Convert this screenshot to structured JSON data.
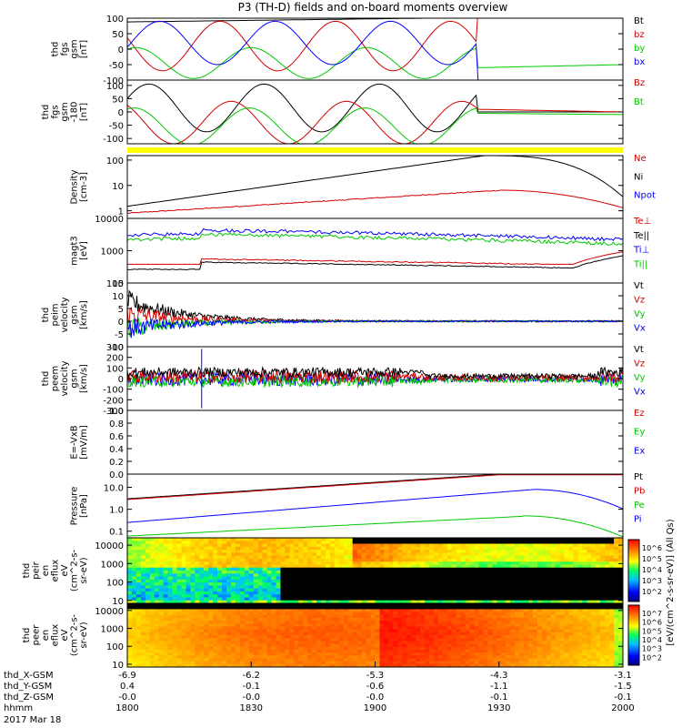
{
  "title": "P3 (TH-D) fields and on-board moments overview",
  "colors": {
    "black": "#000000",
    "red": "#d00000",
    "green": "#00c800",
    "blue": "#0000ff",
    "yellow": "#ffff00"
  },
  "chart_data": [
    {
      "type": "line",
      "panel": "fgs",
      "ylabel": [
        "thd",
        "fgs",
        "gsm",
        "[nT]"
      ],
      "ylim": [
        -100,
        100
      ],
      "yticks": [
        "100",
        "50",
        "0",
        "-50",
        "-100"
      ],
      "legend": [
        {
          "name": "Bt",
          "color": "black"
        },
        {
          "name": "bz",
          "color": "red"
        },
        {
          "name": "by",
          "color": "green"
        },
        {
          "name": "bx",
          "color": "blue"
        }
      ]
    },
    {
      "type": "line",
      "panel": "fgs_r180",
      "ylabel": [
        "thd",
        "fgs",
        "gsm",
        "-180",
        "[nT]"
      ],
      "ylim": [
        -120,
        120
      ],
      "yticks": [
        "100",
        "50",
        "0",
        "-50",
        "-100"
      ],
      "legend": [
        {
          "name": "Bz",
          "color": "red"
        },
        {
          "name": "Bt",
          "color": "green"
        }
      ]
    },
    {
      "type": "line",
      "panel": "density",
      "ylabel": [
        "Density",
        "[cm-3]"
      ],
      "yscale": "log",
      "ylim": [
        0.5,
        150
      ],
      "yticks": [
        "100",
        "10",
        "1"
      ],
      "legend": [
        {
          "name": "Ne",
          "color": "red"
        },
        {
          "name": "Ni",
          "color": "black"
        },
        {
          "name": "Npot",
          "color": "blue"
        }
      ]
    },
    {
      "type": "line",
      "panel": "temperature",
      "ylabel": [
        "magt3",
        "[eV]"
      ],
      "yscale": "log",
      "ylim": [
        100,
        10000
      ],
      "yticks": [
        "10000",
        "1000",
        "100"
      ],
      "legend": [
        {
          "name": "Te⊥",
          "color": "red"
        },
        {
          "name": "Te||",
          "color": "black"
        },
        {
          "name": "Ti⊥",
          "color": "blue"
        },
        {
          "name": "Ti||",
          "color": "green"
        }
      ]
    },
    {
      "type": "line",
      "panel": "ion_velocity",
      "ylabel": [
        "thd",
        "peim",
        "velocity",
        "gsm",
        "[km/s]"
      ],
      "ylim": [
        -10,
        15
      ],
      "yticks": [
        "15",
        "10",
        "5",
        "0",
        "-5",
        "-10"
      ],
      "legend": [
        {
          "name": "Vt",
          "color": "black"
        },
        {
          "name": "Vz",
          "color": "red"
        },
        {
          "name": "Vy",
          "color": "green"
        },
        {
          "name": "Vx",
          "color": "blue"
        }
      ]
    },
    {
      "type": "line",
      "panel": "electron_velocity",
      "ylabel": [
        "thd",
        "peem",
        "velocity",
        "gsm",
        "[km/s]"
      ],
      "ylim": [
        -300,
        300
      ],
      "yticks": [
        "300",
        "200",
        "100",
        "0",
        "-100",
        "-200",
        "-300"
      ],
      "legend": [
        {
          "name": "Vt",
          "color": "black"
        },
        {
          "name": "Vz",
          "color": "red"
        },
        {
          "name": "Vy",
          "color": "green"
        },
        {
          "name": "Vx",
          "color": "blue"
        }
      ]
    },
    {
      "type": "line",
      "panel": "efield",
      "ylabel": [
        "E=-VxB",
        "[mV/m]"
      ],
      "ylim": [
        0,
        1
      ],
      "yticks": [
        "1.0",
        "0.8",
        "0.6",
        "0.4",
        "0.2",
        "0.0"
      ],
      "legend": [
        {
          "name": "Ez",
          "color": "red"
        },
        {
          "name": "Ey",
          "color": "green"
        },
        {
          "name": "Ex",
          "color": "blue"
        }
      ]
    },
    {
      "type": "line",
      "panel": "pressure",
      "ylabel": [
        "Pressure",
        "[nPa]"
      ],
      "yscale": "log",
      "ylim": [
        0.05,
        40
      ],
      "yticks": [
        "10.0",
        "1.0",
        "0.1"
      ],
      "legend": [
        {
          "name": "Pt",
          "color": "black"
        },
        {
          "name": "Pb",
          "color": "red"
        },
        {
          "name": "Pe",
          "color": "green"
        },
        {
          "name": "Pi",
          "color": "blue"
        }
      ]
    },
    {
      "type": "heatmap",
      "panel": "ion_spectrogram",
      "ylabel": [
        "thd",
        "peir",
        "en",
        "eflux",
        "eV",
        "(cm^2-s-",
        "sr-eV)"
      ],
      "yscale": "log",
      "ylim": [
        7,
        25000
      ],
      "yticks": [
        "10000",
        "1000",
        "100",
        "10"
      ],
      "colorbar": {
        "label": "[eV/(cm^2-s-sr-eV)] (All Qs)",
        "ticks": [
          "10^6",
          "10^5",
          "10^4",
          "10^3",
          "10^2"
        ]
      }
    },
    {
      "type": "heatmap",
      "panel": "electron_spectrogram",
      "ylabel": [
        "thd",
        "peer",
        "en",
        "eflux",
        "eV",
        "(cm^2-s-",
        "sr-eV)"
      ],
      "yscale": "log",
      "ylim": [
        7,
        25000
      ],
      "yticks": [
        "10000",
        "1000",
        "100",
        "10"
      ],
      "colorbar": {
        "label": "[eV/(cm^2-s-sr-eV)] (All Qs)",
        "ticks": [
          "10^7",
          "10^6",
          "10^5",
          "10^4",
          "10^3",
          "10^2"
        ]
      }
    }
  ],
  "xaxis": {
    "rows": [
      {
        "label": "thd_X-GSM",
        "values": [
          "-6.9",
          "-6.2",
          "-5.3",
          "-4.3",
          "-3.1"
        ]
      },
      {
        "label": "thd_Y-GSM",
        "values": [
          "0.4",
          "-0.1",
          "-0.6",
          "-1.1",
          "-1.5"
        ]
      },
      {
        "label": "thd_Z-GSM",
        "values": [
          "-0.0",
          "-0.0",
          "-0.0",
          "-0.1",
          "-0.1"
        ]
      },
      {
        "label": "hhmm",
        "values": [
          "1800",
          "1830",
          "1900",
          "1930",
          "2000"
        ]
      }
    ],
    "date": "2017 Mar 18"
  }
}
